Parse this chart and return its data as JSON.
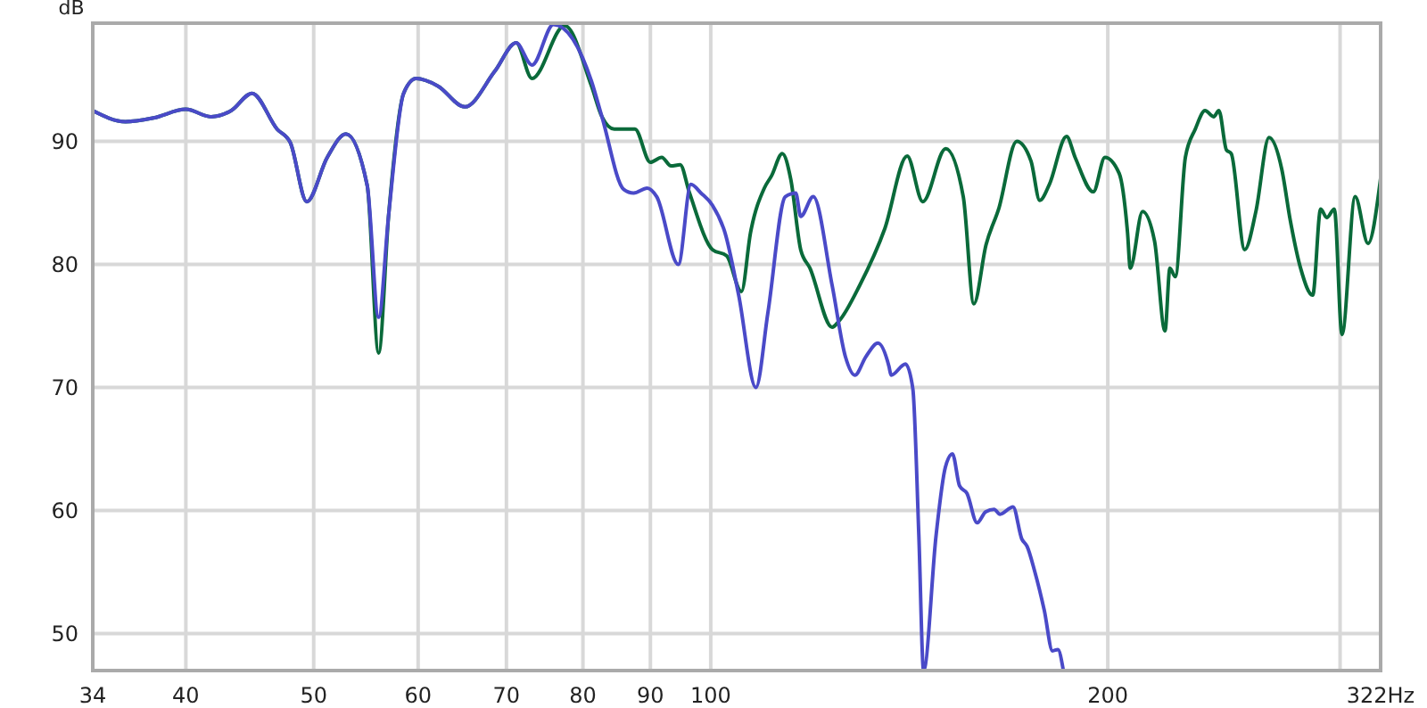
{
  "chart_data": {
    "type": "line",
    "ylabel": "dB",
    "log": "x",
    "grid": true,
    "marker": "none",
    "line_style": "solid",
    "xlim": [
      34,
      322
    ],
    "ylim": [
      47,
      99.6
    ],
    "xticks": [
      34,
      40,
      50,
      60,
      70,
      80,
      90,
      100,
      200,
      {
        "value": 300,
        "label": null
      },
      {
        "value": 322,
        "label": "322Hz"
      }
    ],
    "yticks": [
      50,
      60,
      70,
      80,
      90
    ],
    "series": [
      {
        "color": "#0a6a3a",
        "x": [
          34,
          36,
          37.8,
          40,
          41.8,
          43.3,
          44.9,
          46.9,
          48,
          49.4,
          51.2,
          52.9,
          54.9,
          56,
          57,
          58.5,
          59.8,
          62.1,
          65.1,
          68.6,
          71.2,
          73.2,
          77.5,
          81.2,
          82.7,
          84.5,
          87.6,
          90,
          91.8,
          93.3,
          94.8,
          96.3,
          100.3,
          102.8,
          105.5,
          107.2,
          109.8,
          111.2,
          113.3,
          115,
          117,
          118.9,
          123.6,
          125.1,
          129.7,
          135.5,
          140.9,
          144.8,
          150.7,
          155.4,
          158.3,
          161.7,
          165.3,
          170.6,
          174.9,
          177.6,
          180.6,
          186.1,
          188.9,
          195,
          199,
          204,
          207,
          208,
          212.5,
          217,
          221,
          222.9,
          225,
          229,
          233,
          237,
          240.6,
          242.8,
          246,
          248.1,
          254,
          259,
          265,
          271,
          275,
          280,
          286,
          290,
          293.1,
          297,
          301,
          308,
          315,
          322
        ],
        "values": [
          92.5,
          91.6,
          91.9,
          92.6,
          92,
          92.5,
          93.9,
          91,
          89.9,
          85.1,
          88.7,
          90.6,
          86.4,
          72.8,
          84.1,
          93.9,
          95.1,
          94.5,
          92.8,
          95.7,
          98,
          95.1,
          99.4,
          94.5,
          92,
          91,
          91,
          88.3,
          88.7,
          88,
          88.1,
          85.9,
          81.2,
          80.7,
          77.8,
          82.6,
          86.2,
          87.2,
          89,
          86.9,
          81.2,
          79.7,
          74.9,
          75.4,
          78.3,
          82.9,
          88.8,
          85.1,
          89.4,
          85.5,
          76.8,
          81.6,
          84.5,
          90,
          88.4,
          85.2,
          86.5,
          90.4,
          88.7,
          85.9,
          88.7,
          87.4,
          82.6,
          79.7,
          84.3,
          81.9,
          74.6,
          79.7,
          79,
          88.7,
          91,
          92.5,
          92,
          92.5,
          89.3,
          89,
          81.2,
          84.3,
          90.3,
          87.7,
          83.6,
          79.7,
          77.5,
          84.5,
          83.8,
          84.5,
          74.3,
          85.5,
          81.7,
          87
        ]
      },
      {
        "color": "#4a4ac8",
        "x": [
          34,
          36,
          37.8,
          40,
          41.8,
          43.3,
          44.9,
          46.9,
          48,
          49.4,
          51.2,
          52.9,
          54.9,
          56,
          57,
          58.5,
          59.8,
          62.1,
          65.1,
          68.6,
          71.2,
          73.2,
          76,
          81.2,
          82.7,
          85.9,
          87.4,
          89.5,
          91,
          94.5,
          96.6,
          98.3,
          100.3,
          102.5,
          105,
          108.2,
          110.5,
          113.9,
          116,
          117,
          119.6,
          123.6,
          126.5,
          128.6,
          131.1,
          133.9,
          136.5,
          137,
          140.5,
          142.3,
          143.8,
          145,
          148.2,
          150.6,
          152.5,
          154.4,
          156.4,
          159.2,
          161.6,
          164,
          165.7,
          169.5,
          172.1,
          173.7,
          176,
          179,
          181.6,
          183.3,
          185
        ],
        "values": [
          92.5,
          91.6,
          91.9,
          92.6,
          92,
          92.5,
          93.9,
          91,
          89.9,
          85.1,
          88.7,
          90.6,
          86.4,
          75.7,
          84.1,
          93.9,
          95.1,
          94.5,
          92.8,
          95.7,
          98,
          96.2,
          99.5,
          94.9,
          92,
          86.1,
          85.8,
          86.2,
          85.5,
          80,
          86.5,
          85.8,
          84.8,
          82.6,
          77.5,
          70,
          76.1,
          85.5,
          85.8,
          83.9,
          85.5,
          78.3,
          72.5,
          71,
          72.5,
          73.6,
          71.7,
          71,
          71.9,
          69.9,
          58,
          47,
          58,
          63.5,
          64.6,
          62,
          61.4,
          59,
          59.9,
          60.1,
          59.7,
          60.3,
          57.7,
          57.1,
          55.1,
          51.9,
          48.6,
          48.7,
          47.1
        ]
      }
    ]
  }
}
